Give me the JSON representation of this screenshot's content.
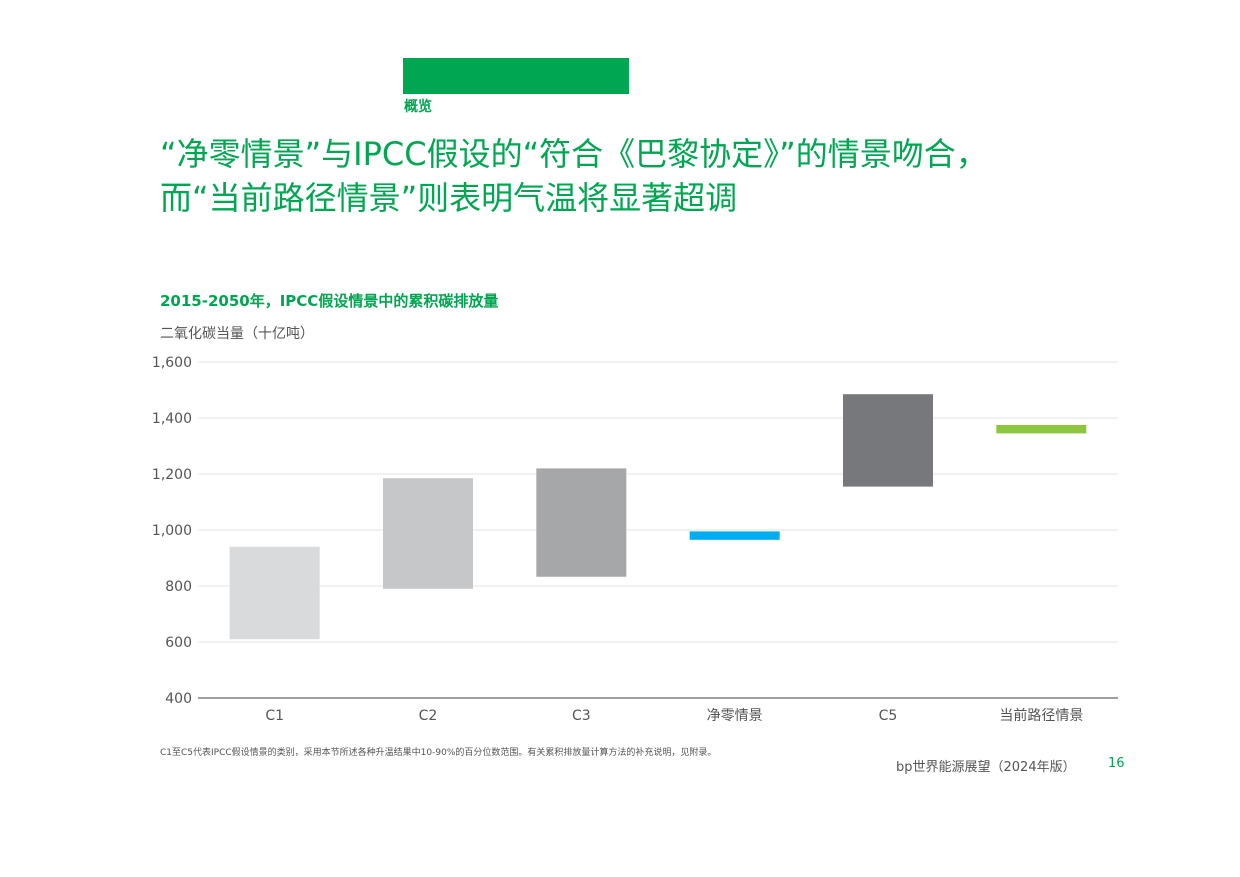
{
  "colors": {
    "brand_green": "#00a651"
  },
  "section": {
    "label": "概览"
  },
  "headline": {
    "line1": "“净零情景”与IPCC假设的“符合《巴黎协定》”的情景吻合，",
    "line2": "而“当前路径情景”则表明气温将显著超调"
  },
  "chart_data": {
    "type": "bar",
    "subtype": "floating-range",
    "title": "2015-2050年，IPCC假设情景中的累积碳排放量",
    "ylabel": "二氧化碳当量（十亿吨）",
    "xlabel": "",
    "ylim": [
      400,
      1600
    ],
    "yticks": [
      400,
      600,
      800,
      1000,
      1200,
      1400,
      1600
    ],
    "ytick_labels": [
      "400",
      "600",
      "800",
      "1,000",
      "1,200",
      "1,400",
      "1,600"
    ],
    "grid": true,
    "categories": [
      "C1",
      "C2",
      "C3",
      "净零情景",
      "C5",
      "当前路径情景"
    ],
    "ranges": [
      {
        "low": 610,
        "high": 940,
        "color": "#d9dadb"
      },
      {
        "low": 790,
        "high": 1185,
        "color": "#c6c7c8"
      },
      {
        "low": 833,
        "high": 1220,
        "color": "#a6a7a9"
      },
      {
        "low": 965,
        "high": 995,
        "color": "#00aeef"
      },
      {
        "low": 1155,
        "high": 1485,
        "color": "#77787b"
      },
      {
        "low": 1345,
        "high": 1375,
        "color": "#8dc63f"
      }
    ]
  },
  "footnote": "C1至C5代表IPCC假设情景的类别，采用本节所述各种升温结果中10-90%的百分位数范围。有关累积排放量计算方法的补充说明，见附录。",
  "footer": {
    "publication": "bp世界能源展望（2024年版）",
    "page_number": "16"
  }
}
